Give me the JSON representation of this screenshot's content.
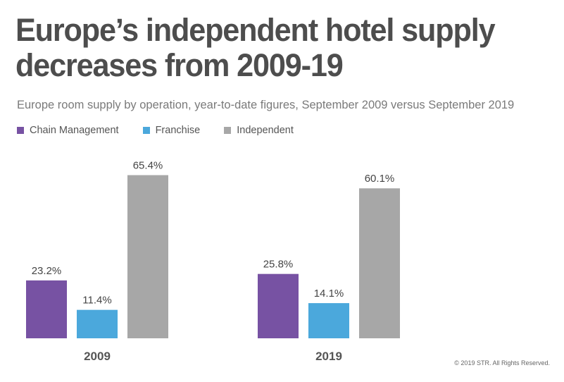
{
  "header": {
    "title": "Europe’s independent hotel supply decreases from 2009-19",
    "subtitle": "Europe room supply by operation, year-to-date figures, September 2009 versus September 2019"
  },
  "colors": {
    "chain_management": "#7752a3",
    "franchise": "#4ba8dc",
    "independent": "#a7a7a7"
  },
  "chart_data": {
    "type": "bar",
    "categories": [
      "2009",
      "2019"
    ],
    "series": [
      {
        "name": "Chain Management",
        "values": [
          23.2,
          25.8
        ],
        "labels": [
          "23.2%",
          "25.8%"
        ]
      },
      {
        "name": "Franchise",
        "values": [
          11.4,
          14.1
        ],
        "labels": [
          "11.4%",
          "14.1%"
        ]
      },
      {
        "name": "Independent",
        "values": [
          65.4,
          60.1
        ],
        "labels": [
          "65.4%",
          "60.1%"
        ]
      }
    ],
    "ylim": [
      0,
      100
    ],
    "grid": false,
    "legend_position": "top-left"
  },
  "footer": {
    "copyright": "© 2019 STR. All Rights Reserved."
  }
}
